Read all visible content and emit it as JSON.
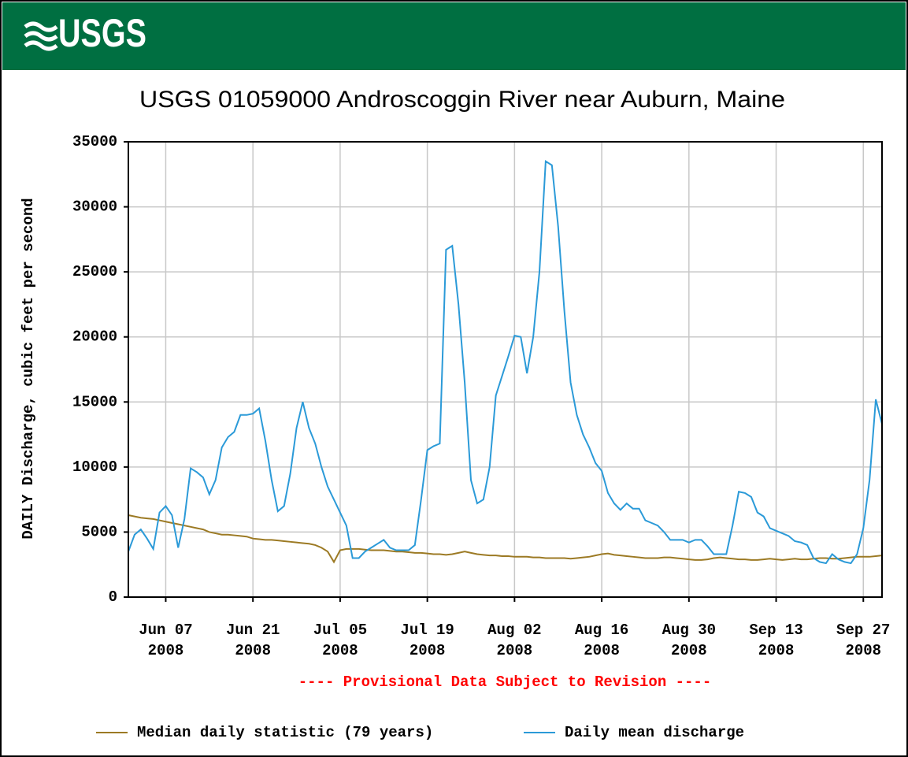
{
  "header": {
    "logo": "USGS"
  },
  "chart_data": {
    "type": "line",
    "title": "USGS 01059000 Androscoggin River near Auburn, Maine",
    "ylabel": "DAILY Discharge, cubic feet per second",
    "annotation": "---- Provisional Data Subject to Revision ----",
    "x": [
      "2008-06-01",
      "2008-06-02",
      "2008-06-03",
      "2008-06-04",
      "2008-06-05",
      "2008-06-06",
      "2008-06-07",
      "2008-06-08",
      "2008-06-09",
      "2008-06-10",
      "2008-06-11",
      "2008-06-12",
      "2008-06-13",
      "2008-06-14",
      "2008-06-15",
      "2008-06-16",
      "2008-06-17",
      "2008-06-18",
      "2008-06-19",
      "2008-06-20",
      "2008-06-21",
      "2008-06-22",
      "2008-06-23",
      "2008-06-24",
      "2008-06-25",
      "2008-06-26",
      "2008-06-27",
      "2008-06-28",
      "2008-06-29",
      "2008-06-30",
      "2008-07-01",
      "2008-07-02",
      "2008-07-03",
      "2008-07-04",
      "2008-07-05",
      "2008-07-06",
      "2008-07-07",
      "2008-07-08",
      "2008-07-09",
      "2008-07-10",
      "2008-07-11",
      "2008-07-12",
      "2008-07-13",
      "2008-07-14",
      "2008-07-15",
      "2008-07-16",
      "2008-07-17",
      "2008-07-18",
      "2008-07-19",
      "2008-07-20",
      "2008-07-21",
      "2008-07-22",
      "2008-07-23",
      "2008-07-24",
      "2008-07-25",
      "2008-07-26",
      "2008-07-27",
      "2008-07-28",
      "2008-07-29",
      "2008-07-30",
      "2008-07-31",
      "2008-08-01",
      "2008-08-02",
      "2008-08-03",
      "2008-08-04",
      "2008-08-05",
      "2008-08-06",
      "2008-08-07",
      "2008-08-08",
      "2008-08-09",
      "2008-08-10",
      "2008-08-11",
      "2008-08-12",
      "2008-08-13",
      "2008-08-14",
      "2008-08-15",
      "2008-08-16",
      "2008-08-17",
      "2008-08-18",
      "2008-08-19",
      "2008-08-20",
      "2008-08-21",
      "2008-08-22",
      "2008-08-23",
      "2008-08-24",
      "2008-08-25",
      "2008-08-26",
      "2008-08-27",
      "2008-08-28",
      "2008-08-29",
      "2008-08-30",
      "2008-08-31",
      "2008-09-01",
      "2008-09-02",
      "2008-09-03",
      "2008-09-04",
      "2008-09-05",
      "2008-09-06",
      "2008-09-07",
      "2008-09-08",
      "2008-09-09",
      "2008-09-10",
      "2008-09-11",
      "2008-09-12",
      "2008-09-13",
      "2008-09-14",
      "2008-09-15",
      "2008-09-16",
      "2008-09-17",
      "2008-09-18",
      "2008-09-19",
      "2008-09-20",
      "2008-09-21",
      "2008-09-22",
      "2008-09-23",
      "2008-09-24",
      "2008-09-25",
      "2008-09-26",
      "2008-09-27",
      "2008-09-28",
      "2008-09-29",
      "2008-09-30"
    ],
    "xlim": [
      "2008-06-01",
      "2008-09-30"
    ],
    "xticks": [
      {
        "value": "2008-06-07",
        "label": [
          "Jun 07",
          "2008"
        ]
      },
      {
        "value": "2008-06-21",
        "label": [
          "Jun 21",
          "2008"
        ]
      },
      {
        "value": "2008-07-05",
        "label": [
          "Jul 05",
          "2008"
        ]
      },
      {
        "value": "2008-07-19",
        "label": [
          "Jul 19",
          "2008"
        ]
      },
      {
        "value": "2008-08-02",
        "label": [
          "Aug 02",
          "2008"
        ]
      },
      {
        "value": "2008-08-16",
        "label": [
          "Aug 16",
          "2008"
        ]
      },
      {
        "value": "2008-08-30",
        "label": [
          "Aug 30",
          "2008"
        ]
      },
      {
        "value": "2008-09-13",
        "label": [
          "Sep 13",
          "2008"
        ]
      },
      {
        "value": "2008-09-27",
        "label": [
          "Sep 27",
          "2008"
        ]
      }
    ],
    "ylim": [
      0,
      35000
    ],
    "yticks": [
      0,
      5000,
      10000,
      15000,
      20000,
      25000,
      30000,
      35000
    ],
    "grid": true,
    "series": [
      {
        "name": "Median daily statistic (79 years)",
        "color": "#9c7a24",
        "values": [
          6300,
          6200,
          6100,
          6050,
          6000,
          5900,
          5800,
          5700,
          5600,
          5500,
          5400,
          5300,
          5200,
          5000,
          4900,
          4800,
          4800,
          4750,
          4700,
          4650,
          4500,
          4450,
          4400,
          4400,
          4350,
          4300,
          4250,
          4200,
          4150,
          4100,
          4000,
          3800,
          3500,
          2700,
          3600,
          3700,
          3700,
          3700,
          3650,
          3600,
          3600,
          3600,
          3550,
          3500,
          3500,
          3450,
          3400,
          3400,
          3350,
          3300,
          3300,
          3250,
          3300,
          3400,
          3500,
          3400,
          3300,
          3250,
          3200,
          3200,
          3150,
          3150,
          3100,
          3100,
          3100,
          3050,
          3050,
          3000,
          3000,
          3000,
          3000,
          2950,
          3000,
          3050,
          3100,
          3200,
          3300,
          3350,
          3250,
          3200,
          3150,
          3100,
          3050,
          3000,
          3000,
          3000,
          3050,
          3050,
          3000,
          2950,
          2900,
          2850,
          2850,
          2900,
          3000,
          3050,
          3000,
          2950,
          2900,
          2900,
          2850,
          2850,
          2900,
          2950,
          2900,
          2850,
          2900,
          2950,
          2900,
          2900,
          2950,
          3000,
          3000,
          2950,
          2950,
          3000,
          3050,
          3100,
          3100,
          3100,
          3150,
          3200
        ]
      },
      {
        "name": "Daily mean discharge",
        "color": "#2b9ad8",
        "values": [
          3500,
          4800,
          5200,
          4500,
          3700,
          6500,
          7000,
          6300,
          3800,
          6000,
          9900,
          9600,
          9200,
          7900,
          9000,
          11500,
          12300,
          12700,
          14000,
          14000,
          14100,
          14500,
          12000,
          9000,
          6600,
          7000,
          9500,
          13000,
          15000,
          13000,
          11800,
          10000,
          8500,
          7500,
          6500,
          5500,
          3000,
          3000,
          3500,
          3800,
          4100,
          4400,
          3800,
          3600,
          3600,
          3600,
          4000,
          7500,
          11300,
          11600,
          11800,
          26700,
          27000,
          22500,
          16500,
          9000,
          7200,
          7500,
          10000,
          15500,
          17000,
          18500,
          20100,
          20000,
          17200,
          20000,
          25000,
          33500,
          33200,
          28500,
          22000,
          16500,
          14000,
          12500,
          11500,
          10300,
          9700,
          8000,
          7200,
          6700,
          7200,
          6800,
          6800,
          5900,
          5700,
          5500,
          5000,
          4400,
          4400,
          4400,
          4200,
          4400,
          4400,
          3900,
          3300,
          3300,
          3300,
          5500,
          8100,
          8000,
          7700,
          6500,
          6200,
          5300,
          5100,
          4900,
          4700,
          4300,
          4200,
          4000,
          3000,
          2700,
          2600,
          3300,
          2900,
          2700,
          2600,
          3300,
          5300,
          9000,
          15200,
          13300
        ]
      }
    ]
  }
}
